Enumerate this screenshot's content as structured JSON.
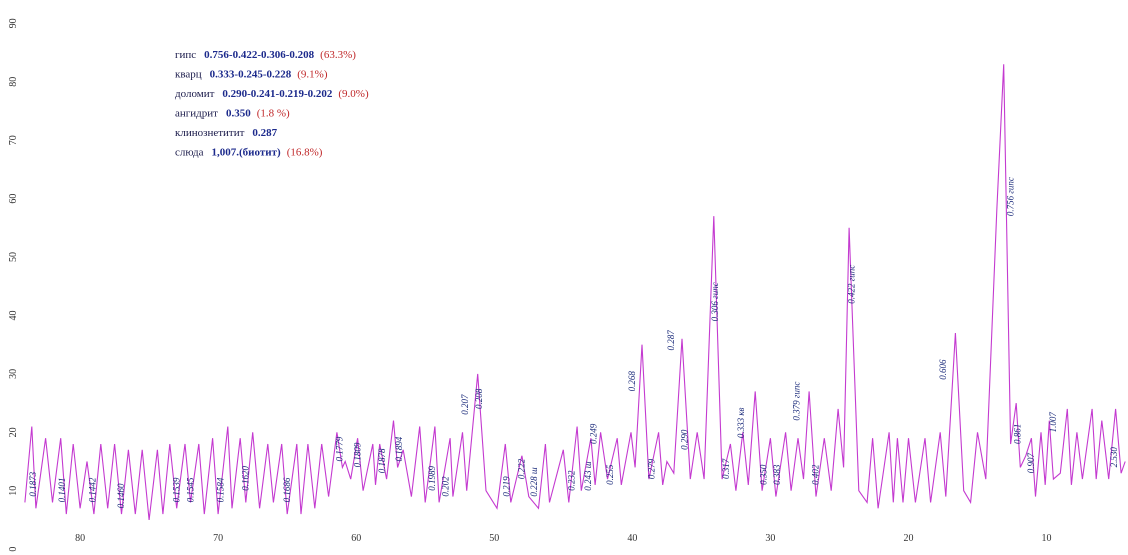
{
  "chart_data": {
    "type": "line",
    "color": "#c43ad0",
    "xlim": [
      85.8,
      4.1
    ],
    "ylim": [
      -1,
      94
    ],
    "xticks": [
      80,
      70,
      60,
      50,
      40,
      30,
      20,
      10
    ],
    "yticks": [
      0,
      10,
      20,
      30,
      40,
      50,
      60,
      70,
      80,
      90
    ],
    "x": [
      84,
      83.5,
      83.2,
      82.5,
      82,
      81.4,
      81,
      80.5,
      80,
      79.5,
      79,
      78.5,
      78,
      77.5,
      77,
      76.5,
      76,
      75.5,
      75,
      74.4,
      74,
      73.5,
      73,
      72.4,
      72,
      71.4,
      71,
      70.4,
      70,
      69.3,
      69,
      68.4,
      68,
      67.5,
      67,
      66.4,
      66,
      65.4,
      65,
      64.3,
      64,
      63.5,
      63,
      62.5,
      62,
      61.4,
      61,
      60.8,
      60.4,
      59.9,
      59.5,
      58.8,
      58.6,
      58.3,
      57.8,
      57.3,
      57,
      56.6,
      56,
      55.4,
      55,
      54.3,
      54,
      53.2,
      53,
      52.3,
      52,
      51.2,
      50.6,
      49.8,
      49.2,
      48.8,
      48,
      47.5,
      46.8,
      46.3,
      46,
      45,
      44.6,
      44,
      43.7,
      43,
      42.7,
      42.3,
      41.8,
      41.1,
      40.8,
      40.1,
      39.8,
      39.3,
      38.8,
      38.1,
      37.8,
      37.5,
      37,
      36.4,
      35.8,
      35.3,
      34.8,
      34.1,
      33.5,
      32.9,
      32.5,
      32,
      31.6,
      31.1,
      30.6,
      30,
      29.6,
      28.9,
      28.5,
      28,
      27.6,
      27.2,
      26.7,
      26.1,
      25.6,
      25.1,
      24.7,
      24.3,
      23.6,
      23,
      22.6,
      22.2,
      21.4,
      21.1,
      20.8,
      20.4,
      20,
      19.5,
      18.8,
      18.4,
      17.7,
      17.3,
      16.6,
      16,
      15.5,
      15,
      14.4,
      13.6,
      13.1,
      12.6,
      12.2,
      11.9,
      11.5,
      11.1,
      10.8,
      10.4,
      10.1,
      9.8,
      9.5,
      9,
      8.5,
      8.2,
      7.8,
      7.4,
      6.7,
      6.4,
      6,
      5.5,
      5,
      4.6,
      4.3
    ],
    "values": [
      8,
      21,
      7,
      19,
      8,
      19,
      6,
      18,
      7,
      15,
      6,
      18,
      7,
      18,
      6,
      17,
      6,
      17,
      5,
      17,
      6,
      18,
      7,
      18,
      8,
      18,
      6,
      19,
      6,
      21,
      7,
      19,
      8,
      20,
      7,
      18,
      8,
      18,
      6,
      18,
      6,
      18,
      7,
      18,
      9,
      20,
      14,
      15,
      12,
      19,
      10,
      18,
      11,
      18,
      12,
      22,
      14,
      17,
      9,
      21,
      8,
      21,
      8,
      19,
      9,
      20,
      10,
      30,
      10,
      7,
      18,
      8,
      16,
      9,
      7,
      18,
      8,
      17,
      8,
      21,
      10,
      19,
      11,
      20,
      12,
      19,
      11,
      20,
      14,
      35,
      12,
      20,
      11,
      15,
      13,
      36,
      12,
      20,
      12,
      57,
      12,
      18,
      10,
      20,
      11,
      27,
      10,
      19,
      9,
      20,
      10,
      19,
      12,
      27,
      9,
      19,
      10,
      24,
      14,
      55,
      10,
      8,
      19,
      7,
      20,
      8,
      19,
      8,
      19,
      8,
      19,
      8,
      20,
      9,
      37,
      10,
      8,
      20,
      12,
      58,
      83,
      18,
      25,
      14,
      16,
      19,
      9,
      20,
      11,
      22,
      12,
      13,
      24,
      11,
      20,
      12,
      24,
      12,
      22,
      12,
      24,
      13,
      15
    ],
    "annotations": [
      {
        "text": "0.1873",
        "x": 83.2,
        "y": 9
      },
      {
        "text": "0.1401",
        "x": 81.1,
        "y": 8
      },
      {
        "text": "0.1442",
        "x": 78.9,
        "y": 8
      },
      {
        "text": "0.1460",
        "x": 76.8,
        "y": 7
      },
      {
        "text": "0.1539",
        "x": 72.8,
        "y": 8
      },
      {
        "text": "0.1545",
        "x": 71.8,
        "y": 8
      },
      {
        "text": "0.1584",
        "x": 69.6,
        "y": 8
      },
      {
        "text": "0.1620",
        "x": 67.8,
        "y": 10
      },
      {
        "text": "0.1686",
        "x": 64.8,
        "y": 8
      },
      {
        "text": "0.1779",
        "x": 61.0,
        "y": 15
      },
      {
        "text": "0.1809",
        "x": 59.7,
        "y": 14
      },
      {
        "text": "0.1878",
        "x": 57.9,
        "y": 13
      },
      {
        "text": "0.1894",
        "x": 56.7,
        "y": 15
      },
      {
        "text": "0.1989",
        "x": 54.3,
        "y": 10
      },
      {
        "text": "0.202",
        "x": 53.3,
        "y": 9
      },
      {
        "text": "0.207",
        "x": 51.9,
        "y": 23
      },
      {
        "text": "0.208",
        "x": 50.9,
        "y": 24
      },
      {
        "text": "0.219",
        "x": 48.9,
        "y": 9
      },
      {
        "text": "0.222",
        "x": 47.8,
        "y": 12
      },
      {
        "text": "0.228 ш",
        "x": 46.9,
        "y": 9
      },
      {
        "text": "0.232",
        "x": 44.2,
        "y": 10
      },
      {
        "text": "0.243 ш",
        "x": 43.0,
        "y": 10
      },
      {
        "text": "0.249",
        "x": 42.6,
        "y": 18
      },
      {
        "text": "0.255",
        "x": 41.4,
        "y": 11
      },
      {
        "text": "0.268",
        "x": 39.8,
        "y": 27
      },
      {
        "text": "0.279",
        "x": 38.4,
        "y": 12
      },
      {
        "text": "0.287",
        "x": 37.0,
        "y": 34
      },
      {
        "text": "0.290",
        "x": 36.0,
        "y": 17
      },
      {
        "text": "0.306 гипс",
        "x": 33.8,
        "y": 39
      },
      {
        "text": "0.317",
        "x": 33.0,
        "y": 12
      },
      {
        "text": "0.333 кв",
        "x": 31.9,
        "y": 19
      },
      {
        "text": "0.350",
        "x": 30.3,
        "y": 11
      },
      {
        "text": "0.383",
        "x": 29.3,
        "y": 11
      },
      {
        "text": "0.379 гипс",
        "x": 27.9,
        "y": 22
      },
      {
        "text": "0.402",
        "x": 26.5,
        "y": 11
      },
      {
        "text": "0.422 гипс",
        "x": 23.9,
        "y": 42
      },
      {
        "text": "0.606",
        "x": 17.3,
        "y": 29
      },
      {
        "text": "0.756 гипс",
        "x": 12.4,
        "y": 57
      },
      {
        "text": "0.861",
        "x": 11.9,
        "y": 18
      },
      {
        "text": "0.907",
        "x": 10.9,
        "y": 13
      },
      {
        "text": "1.007",
        "x": 9.3,
        "y": 20
      },
      {
        "text": "2.530",
        "x": 4.9,
        "y": 14
      }
    ],
    "legend_lines": [
      {
        "name": "гипс",
        "values": "0.756-0.422-0.306-0.208",
        "percent": "(63.3%)"
      },
      {
        "name": "кварц",
        "values": "0.333-0.245-0.228",
        "percent": "(9.1%)"
      },
      {
        "name": "доломит",
        "values": "0.290-0.241-0.219-0.202",
        "percent": "(9.0%)"
      },
      {
        "name": "ангидрит",
        "values": "0.350",
        "percent": "(1.8 %)"
      },
      {
        "name": "клинознетитит",
        "values": "0.287"
      },
      {
        "name": "слюда",
        "values": "1,007.(биотит)",
        "percent": "(16.8%)"
      }
    ]
  }
}
